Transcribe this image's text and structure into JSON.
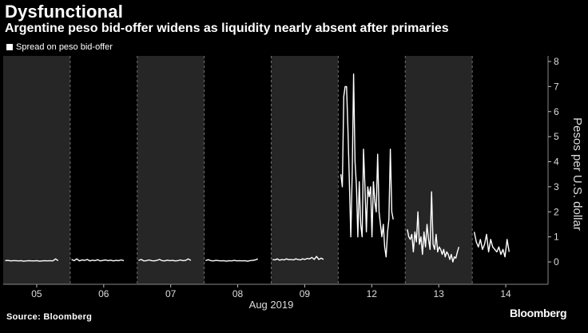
{
  "header": {
    "title": "Dysfunctional",
    "subtitle": "Argentine peso bid-offer widens as liquidity nearly absent after primaries"
  },
  "footer": {
    "source": "Source: Bloomberg",
    "brand": "Bloomberg"
  },
  "colors": {
    "background": "#000000",
    "band": "#262626",
    "line": "#ffffff",
    "gridline": "#6f6f6f"
  },
  "chart_data": {
    "type": "line",
    "title": "Dysfunctional",
    "subtitle": "Argentine peso bid-offer widens as liquidity nearly absent after primaries",
    "ylabel": "Pesos per U.S. dollar",
    "xlabel": "Aug 2019",
    "ylim": [
      0,
      8
    ],
    "yticks": [
      0,
      1,
      2,
      3,
      4,
      5,
      6,
      7,
      8
    ],
    "grid": true,
    "legend": {
      "position": "top-left",
      "entries": [
        "Spread on peso bid-offer"
      ]
    },
    "days": [
      {
        "label": "05",
        "shaded": true
      },
      {
        "label": "06",
        "shaded": false
      },
      {
        "label": "07",
        "shaded": true
      },
      {
        "label": "08",
        "shaded": false
      },
      {
        "label": "09",
        "shaded": true
      },
      {
        "label": "12",
        "shaded": false
      },
      {
        "label": "13",
        "shaded": true
      },
      {
        "label": "14",
        "shaded": false
      }
    ],
    "series": [
      {
        "name": "Spread on peso bid-offer",
        "segments": [
          {
            "day": 0,
            "start": 0.03,
            "end": 0.82,
            "values": [
              0.05,
              0.06,
              0.04,
              0.05,
              0.05,
              0.04,
              0.05,
              0.03,
              0.04,
              0.05,
              0.04,
              0.04,
              0.05,
              0.03,
              0.04,
              0.05,
              0.04,
              0.05,
              0.04,
              0.12,
              0.05
            ]
          },
          {
            "day": 1,
            "start": 0.02,
            "end": 0.8,
            "values": [
              0.1,
              0.05,
              0.12,
              0.04,
              0.08,
              0.06,
              0.1,
              0.04,
              0.07,
              0.05,
              0.09,
              0.04,
              0.06,
              0.08,
              0.05,
              0.07,
              0.04,
              0.06,
              0.05,
              0.08,
              0.05
            ]
          },
          {
            "day": 2,
            "start": 0.02,
            "end": 0.8,
            "values": [
              0.06,
              0.1,
              0.04,
              0.05,
              0.08,
              0.05,
              0.04,
              0.06,
              0.1,
              0.05,
              0.04,
              0.07,
              0.05,
              0.06,
              0.04,
              0.05,
              0.08,
              0.05,
              0.06,
              0.12,
              0.06
            ]
          },
          {
            "day": 3,
            "start": 0.02,
            "end": 0.8,
            "values": [
              0.05,
              0.09,
              0.05,
              0.04,
              0.06,
              0.05,
              0.04,
              0.05,
              0.03,
              0.05,
              0.04,
              0.06,
              0.04,
              0.05,
              0.04,
              0.05,
              0.03,
              0.05,
              0.06,
              0.08,
              0.12
            ]
          },
          {
            "day": 4,
            "start": 0.02,
            "end": 0.78,
            "values": [
              0.1,
              0.08,
              0.12,
              0.07,
              0.1,
              0.08,
              0.12,
              0.09,
              0.1,
              0.08,
              0.12,
              0.1,
              0.08,
              0.12,
              0.1,
              0.14,
              0.12,
              0.18,
              0.1,
              0.22,
              0.1,
              0.15,
              0.1
            ]
          },
          {
            "day": 5,
            "start": 0.04,
            "end": 0.82,
            "values": [
              3.5,
              3.0,
              6.6,
              7.0,
              7.0,
              5.2,
              3.2,
              1.0,
              3.6,
              7.5,
              4.0,
              3.0,
              1.0,
              3.2,
              1.5,
              1.0,
              4.5,
              3.0,
              1.2,
              3.0,
              2.6,
              3.0,
              1.0,
              3.2,
              2.4,
              2.0,
              4.3,
              2.0,
              1.5,
              1.0,
              1.5,
              0.6,
              0.2,
              1.2,
              1.7,
              4.5,
              2.0,
              1.7
            ]
          },
          {
            "day": 6,
            "start": 0.03,
            "end": 0.8,
            "values": [
              1.3,
              1.0,
              0.9,
              1.1,
              0.4,
              1.2,
              0.8,
              2.0,
              0.7,
              1.0,
              0.3,
              1.2,
              0.6,
              1.5,
              0.9,
              0.5,
              2.8,
              0.7,
              0.5,
              1.1,
              0.4,
              0.6,
              0.5,
              0.3,
              0.5,
              0.2,
              0.4,
              0.3,
              0.1,
              0.3,
              0.0,
              0.2,
              0.15,
              0.4,
              0.6
            ]
          },
          {
            "day": 7,
            "start": 0.03,
            "end": 0.55,
            "values": [
              1.2,
              0.8,
              0.6,
              0.9,
              0.5,
              0.7,
              1.1,
              0.4,
              0.9,
              0.6,
              0.5,
              0.4,
              0.6,
              0.3,
              0.5,
              0.2,
              0.9,
              0.4
            ]
          }
        ]
      }
    ]
  }
}
